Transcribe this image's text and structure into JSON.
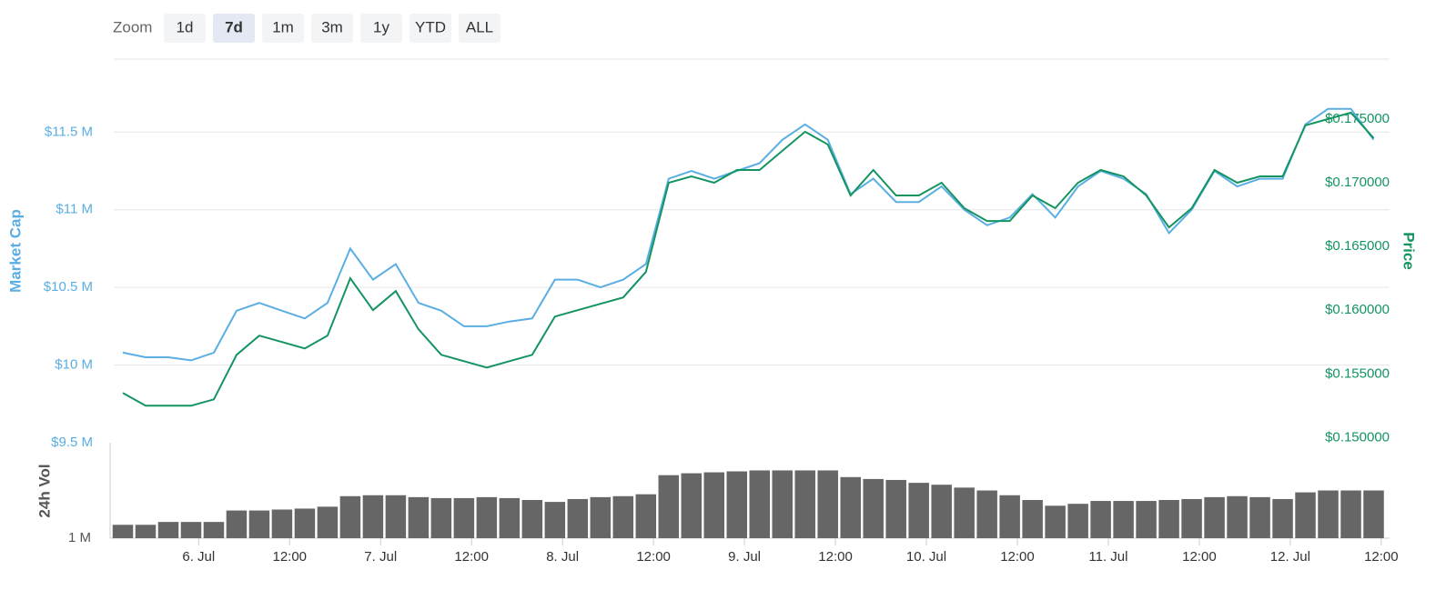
{
  "zoom": {
    "label": "Zoom",
    "buttons": [
      "1d",
      "7d",
      "1m",
      "3m",
      "1y",
      "YTD",
      "ALL"
    ],
    "selected": 1
  },
  "chart_data": [
    {
      "type": "line",
      "ylabel": "Market Cap",
      "y2label": "Price",
      "x": [
        -10,
        -7,
        -4,
        -1,
        2,
        5,
        8,
        11,
        14,
        17,
        20,
        23,
        26,
        29,
        32,
        35,
        38,
        41,
        44,
        47,
        50,
        53,
        56,
        59,
        62,
        65,
        68,
        71,
        74,
        77,
        80,
        83,
        86,
        89,
        92,
        95,
        98,
        101,
        104,
        107,
        110,
        113,
        116,
        119,
        122,
        125,
        128,
        131,
        134,
        137,
        140,
        143,
        146,
        149,
        152,
        155
      ],
      "xlim": [
        -11.2,
        157.1
      ],
      "ylim": [
        9500000,
        11970000
      ],
      "yticks": [
        {
          "value": 9500000,
          "label": "$9.5 M"
        },
        {
          "value": 10000000,
          "label": "$10 M"
        },
        {
          "value": 10500000,
          "label": "$10.5 M"
        },
        {
          "value": 11000000,
          "label": "$11 M"
        },
        {
          "value": 11500000,
          "label": "$11.5 M"
        }
      ],
      "y2lim": [
        0.1496,
        0.1797
      ],
      "y2ticks": [
        {
          "value": 0.15,
          "label": "$0.150000"
        },
        {
          "value": 0.155,
          "label": "$0.155000"
        },
        {
          "value": 0.16,
          "label": "$0.160000"
        },
        {
          "value": 0.165,
          "label": "$0.165000"
        },
        {
          "value": 0.17,
          "label": "$0.170000"
        },
        {
          "value": 0.175,
          "label": "$0.175000"
        }
      ],
      "grid": true,
      "series": [
        {
          "color": "#5aaee3",
          "axis": "y",
          "values": [
            10080000,
            10050000,
            10050000,
            10030000,
            10080000,
            10350000,
            10400000,
            10350000,
            10300000,
            10400000,
            10750000,
            10550000,
            10650000,
            10400000,
            10350000,
            10250000,
            10250000,
            10280000,
            10300000,
            10550000,
            10550000,
            10500000,
            10550000,
            10650000,
            11200000,
            11250000,
            11200000,
            11250000,
            11300000,
            11450000,
            11550000,
            11450000,
            11100000,
            11200000,
            11050000,
            11050000,
            11150000,
            11000000,
            10900000,
            10950000,
            11100000,
            10950000,
            11150000,
            11250000,
            11200000,
            11100000,
            10850000,
            11000000,
            11250000,
            11150000,
            11200000,
            11200000,
            11550000,
            11650000,
            11650000,
            11450000
          ]
        },
        {
          "color": "#139460",
          "axis": "y2",
          "values": [
            0.1535,
            0.1525,
            0.1525,
            0.1525,
            0.153,
            0.1565,
            0.158,
            0.1575,
            0.157,
            0.158,
            0.1625,
            0.16,
            0.1615,
            0.1585,
            0.1565,
            0.156,
            0.1555,
            0.156,
            0.1565,
            0.1595,
            0.16,
            0.1605,
            0.161,
            0.163,
            0.17,
            0.1705,
            0.17,
            0.171,
            0.171,
            0.1725,
            0.174,
            0.173,
            0.169,
            0.171,
            0.169,
            0.169,
            0.17,
            0.168,
            0.167,
            0.167,
            0.169,
            0.168,
            0.17,
            0.171,
            0.1705,
            0.169,
            0.1665,
            0.168,
            0.171,
            0.17,
            0.1705,
            0.1705,
            0.1745,
            0.175,
            0.1755,
            0.1735
          ]
        }
      ]
    },
    {
      "type": "bar",
      "ylabel": "24h Vol",
      "x": [
        -10,
        -7,
        -4,
        -1,
        2,
        5,
        8,
        11,
        14,
        17,
        20,
        23,
        26,
        29,
        32,
        35,
        38,
        41,
        44,
        47,
        50,
        53,
        56,
        59,
        62,
        65,
        68,
        71,
        74,
        77,
        80,
        83,
        86,
        89,
        92,
        95,
        98,
        101,
        104,
        107,
        110,
        113,
        116,
        119,
        122,
        125,
        128,
        131,
        134,
        137,
        140,
        143,
        146,
        149,
        152,
        155
      ],
      "xlim": [
        -11.2,
        157.1
      ],
      "ylim": [
        1000000,
        2000000
      ],
      "yticks": [
        {
          "value": 1000000,
          "label": "1 M"
        }
      ],
      "xticks": [
        {
          "value": 0,
          "label": "6. Jul"
        },
        {
          "value": 12,
          "label": "12:00"
        },
        {
          "value": 24,
          "label": "7. Jul"
        },
        {
          "value": 36,
          "label": "12:00"
        },
        {
          "value": 48,
          "label": "8. Jul"
        },
        {
          "value": 60,
          "label": "12:00"
        },
        {
          "value": 72,
          "label": "9. Jul"
        },
        {
          "value": 84,
          "label": "12:00"
        },
        {
          "value": 96,
          "label": "10. Jul"
        },
        {
          "value": 108,
          "label": "12:00"
        },
        {
          "value": 120,
          "label": "11. Jul"
        },
        {
          "value": 132,
          "label": "12:00"
        },
        {
          "value": 144,
          "label": "12. Jul"
        },
        {
          "value": 156,
          "label": "12:00"
        }
      ],
      "color": "#666666",
      "values": [
        1140000,
        1140000,
        1170000,
        1170000,
        1170000,
        1290000,
        1290000,
        1300000,
        1310000,
        1330000,
        1440000,
        1450000,
        1450000,
        1430000,
        1420000,
        1420000,
        1430000,
        1420000,
        1400000,
        1380000,
        1410000,
        1430000,
        1440000,
        1460000,
        1660000,
        1680000,
        1690000,
        1700000,
        1710000,
        1710000,
        1710000,
        1710000,
        1640000,
        1620000,
        1610000,
        1580000,
        1560000,
        1530000,
        1500000,
        1450000,
        1400000,
        1340000,
        1360000,
        1390000,
        1390000,
        1390000,
        1400000,
        1410000,
        1430000,
        1440000,
        1430000,
        1410000,
        1480000,
        1500000,
        1500000,
        1500000
      ]
    }
  ]
}
